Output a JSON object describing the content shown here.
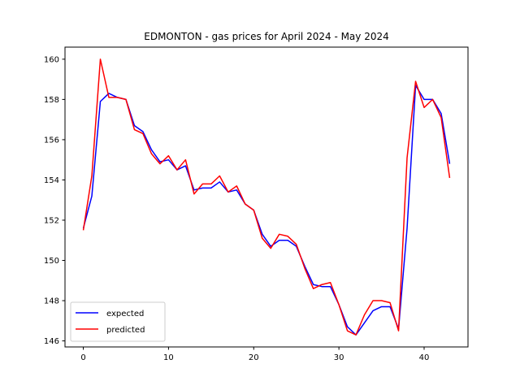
{
  "chart_data": {
    "type": "line",
    "title": "EDMONTON - gas prices for April 2024 - May 2024",
    "xlabel": "",
    "ylabel": "",
    "xlim": [
      -2.15,
      45.15
    ],
    "ylim": [
      145.7,
      160.6
    ],
    "xticks": [
      0,
      10,
      20,
      30,
      40
    ],
    "yticks": [
      146,
      148,
      150,
      152,
      154,
      156,
      158,
      160
    ],
    "grid": false,
    "legend_position": "lower-left",
    "x": [
      0,
      1,
      2,
      3,
      4,
      5,
      6,
      7,
      8,
      9,
      10,
      11,
      12,
      13,
      14,
      15,
      16,
      17,
      18,
      19,
      20,
      21,
      22,
      23,
      24,
      25,
      26,
      27,
      28,
      29,
      30,
      31,
      32,
      33,
      34,
      35,
      36,
      37,
      38,
      39,
      40,
      41,
      42,
      43
    ],
    "series": [
      {
        "name": "expected",
        "color": "#0000ff",
        "values": [
          151.6,
          153.2,
          157.9,
          158.3,
          158.1,
          158.0,
          156.7,
          156.4,
          155.5,
          154.9,
          155.0,
          154.5,
          154.7,
          153.5,
          153.6,
          153.6,
          153.9,
          153.4,
          153.5,
          152.8,
          152.5,
          151.3,
          150.7,
          151.0,
          151.0,
          150.7,
          149.7,
          148.8,
          148.7,
          148.7,
          147.8,
          146.7,
          146.3,
          146.9,
          147.5,
          147.7,
          147.7,
          146.6,
          151.6,
          158.7,
          158.0,
          158.0,
          157.3,
          154.8
        ]
      },
      {
        "name": "predicted",
        "color": "#ff0000",
        "values": [
          151.5,
          154.2,
          160.0,
          158.1,
          158.1,
          158.0,
          156.5,
          156.3,
          155.3,
          154.8,
          155.2,
          154.5,
          155.0,
          153.3,
          153.8,
          153.8,
          154.2,
          153.4,
          153.7,
          152.8,
          152.5,
          151.1,
          150.6,
          151.3,
          151.2,
          150.8,
          149.6,
          148.6,
          148.8,
          148.9,
          147.8,
          146.5,
          146.3,
          147.3,
          148.0,
          148.0,
          147.9,
          146.5,
          155.1,
          158.9,
          157.6,
          158.0,
          157.1,
          154.1
        ]
      }
    ]
  }
}
